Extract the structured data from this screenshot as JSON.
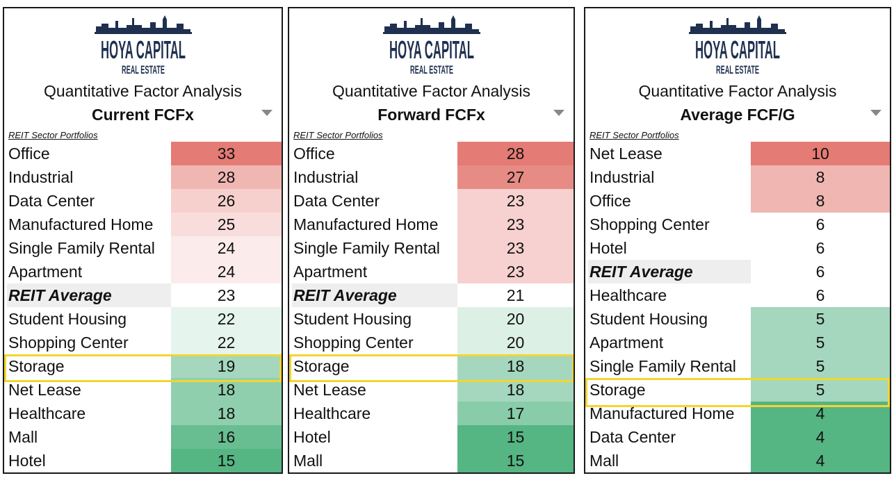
{
  "logo": {
    "line1": "HOYA CAPITAL",
    "line2": "REAL ESTATE",
    "color": "#1f3050"
  },
  "colors": {
    "high": "#e47b74",
    "mid": "#ffffff",
    "low": "#55b583",
    "highlight": "#f2d531",
    "avg_bg": "#eeeeee"
  },
  "panels": [
    {
      "title": "Quantitative Factor Analysis",
      "metric": "Current FCFx",
      "subheading": "REIT Sector Portfolios",
      "rows": [
        {
          "label": "Office",
          "value": "33"
        },
        {
          "label": "Industrial",
          "value": "28"
        },
        {
          "label": "Data Center",
          "value": "26"
        },
        {
          "label": "Manufactured Home",
          "value": "25"
        },
        {
          "label": "Single Family Rental",
          "value": "24"
        },
        {
          "label": "Apartment",
          "value": "24"
        },
        {
          "label": "REIT Average",
          "value": "23"
        },
        {
          "label": "Student Housing",
          "value": "22"
        },
        {
          "label": "Shopping Center",
          "value": "22"
        },
        {
          "label": "Storage",
          "value": "19"
        },
        {
          "label": "Net Lease",
          "value": "18"
        },
        {
          "label": "Healthcare",
          "value": "18"
        },
        {
          "label": "Mall",
          "value": "16"
        },
        {
          "label": "Hotel",
          "value": "15"
        }
      ]
    },
    {
      "title": "Quantitative Factor Analysis",
      "metric": "Forward FCFx",
      "subheading": "REIT Sector Portfolios",
      "rows": [
        {
          "label": "Office",
          "value": "28"
        },
        {
          "label": "Industrial",
          "value": "27"
        },
        {
          "label": "Data Center",
          "value": "23"
        },
        {
          "label": "Manufactured Home",
          "value": "23"
        },
        {
          "label": "Single Family Rental",
          "value": "23"
        },
        {
          "label": "Apartment",
          "value": "23"
        },
        {
          "label": "REIT Average",
          "value": "21"
        },
        {
          "label": "Student Housing",
          "value": "20"
        },
        {
          "label": "Shopping Center",
          "value": "20"
        },
        {
          "label": "Storage",
          "value": "18"
        },
        {
          "label": "Net Lease",
          "value": "18"
        },
        {
          "label": "Healthcare",
          "value": "17"
        },
        {
          "label": "Hotel",
          "value": "15"
        },
        {
          "label": "Mall",
          "value": "15"
        }
      ]
    },
    {
      "title": "Quantitative Factor Analysis",
      "metric": "Average FCF/G",
      "subheading": "REIT Sector Portfolios",
      "rows": [
        {
          "label": "Net Lease",
          "value": "10"
        },
        {
          "label": "Industrial",
          "value": "8"
        },
        {
          "label": "Office",
          "value": "8"
        },
        {
          "label": "Shopping Center",
          "value": "6"
        },
        {
          "label": "Hotel",
          "value": "6"
        },
        {
          "label": "REIT Average",
          "value": "6"
        },
        {
          "label": "Healthcare",
          "value": "6"
        },
        {
          "label": "Student Housing",
          "value": "5"
        },
        {
          "label": "Apartment",
          "value": "5"
        },
        {
          "label": "Single Family Rental",
          "value": "5"
        },
        {
          "label": "Storage",
          "value": "5"
        },
        {
          "label": "Manufactured Home",
          "value": "4"
        },
        {
          "label": "Data Center",
          "value": "4"
        },
        {
          "label": "Mall",
          "value": "4"
        }
      ]
    }
  ],
  "chart_data": [
    {
      "type": "table",
      "title": "Quantitative Factor Analysis",
      "metric": "Current FCFx",
      "categories": [
        "Office",
        "Industrial",
        "Data Center",
        "Manufactured Home",
        "Single Family Rental",
        "Apartment",
        "REIT Average",
        "Student Housing",
        "Shopping Center",
        "Storage",
        "Net Lease",
        "Healthcare",
        "Mall",
        "Hotel"
      ],
      "values": [
        33,
        28,
        26,
        25,
        24,
        24,
        23,
        22,
        22,
        19,
        18,
        18,
        16,
        15
      ],
      "highlighted": "Storage"
    },
    {
      "type": "table",
      "title": "Quantitative Factor Analysis",
      "metric": "Forward FCFx",
      "categories": [
        "Office",
        "Industrial",
        "Data Center",
        "Manufactured Home",
        "Single Family Rental",
        "Apartment",
        "REIT Average",
        "Student Housing",
        "Shopping Center",
        "Storage",
        "Net Lease",
        "Healthcare",
        "Hotel",
        "Mall"
      ],
      "values": [
        28,
        27,
        23,
        23,
        23,
        23,
        21,
        20,
        20,
        18,
        18,
        17,
        15,
        15
      ],
      "highlighted": "Storage"
    },
    {
      "type": "table",
      "title": "Quantitative Factor Analysis",
      "metric": "Average FCF/G",
      "categories": [
        "Net Lease",
        "Industrial",
        "Office",
        "Shopping Center",
        "Hotel",
        "REIT Average",
        "Healthcare",
        "Student Housing",
        "Apartment",
        "Single Family Rental",
        "Storage",
        "Manufactured Home",
        "Data Center",
        "Mall"
      ],
      "values": [
        10,
        8,
        8,
        6,
        6,
        6,
        6,
        5,
        5,
        5,
        5,
        4,
        4,
        4
      ],
      "highlighted": "Storage"
    }
  ]
}
